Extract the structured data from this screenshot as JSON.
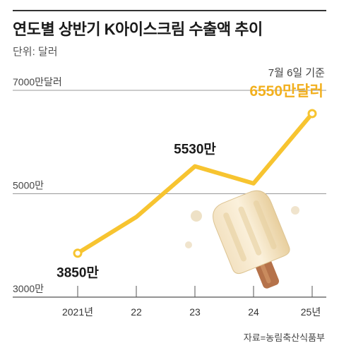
{
  "title": "연도별 상반기 K아이스크림 수출액 추이",
  "unit": "단위: 달러",
  "note": "7월 6일 기준",
  "source": "자료=농림축산식품부",
  "colors": {
    "line": "#f7c430",
    "highlight": "#f2b01e",
    "grid": "#999999",
    "text": "#222222"
  },
  "chart_data": {
    "type": "line",
    "categories": [
      "2021년",
      "22",
      "23",
      "24",
      "25년"
    ],
    "values": [
      3850,
      4550,
      5530,
      5200,
      6550
    ],
    "ylim": [
      3000,
      7000
    ],
    "yticks": [
      {
        "value": 7000,
        "label": "7000만달러"
      },
      {
        "value": 5000,
        "label": "5000만"
      },
      {
        "value": 3000,
        "label": "3000만"
      }
    ],
    "data_labels": [
      {
        "index": 0,
        "text": "3850만"
      },
      {
        "index": 2,
        "text": "5530만"
      },
      {
        "index": 4,
        "text": "6550만달러"
      }
    ],
    "grid": true
  }
}
